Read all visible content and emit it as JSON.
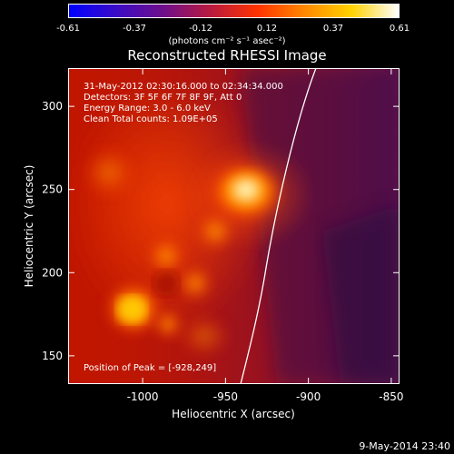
{
  "colorbar": {
    "ticks": [
      "-0.61",
      "-0.37",
      "-0.12",
      "0.12",
      "0.37",
      "0.61"
    ],
    "units": "(photons cm⁻² s⁻¹ asec⁻²)",
    "colors": [
      "#0000ff",
      "#3a0bc6",
      "#6e0f8b",
      "#b81a3f",
      "#ff3300",
      "#ff8800",
      "#ffd200",
      "#ffffff"
    ]
  },
  "plot": {
    "title": "Reconstructed RHESSI Image",
    "xlabel": "Heliocentric X (arcsec)",
    "ylabel": "Heliocentric Y (arcsec)",
    "xlim": [
      -1045,
      -845
    ],
    "ylim": [
      133,
      323
    ],
    "xticks": [
      "-1000",
      "-950",
      "-900",
      "-850"
    ],
    "xtick_values": [
      -1000,
      -950,
      -900,
      -850
    ],
    "yticks": [
      "150",
      "200",
      "250",
      "300"
    ],
    "ytick_values": [
      150,
      200,
      250,
      300
    ],
    "annotations": {
      "time": "31-May-2012 02:30:16.000 to 02:34:34.000",
      "detectors": "Detectors: 3F 5F 6F 7F 8F 9F, Att 0",
      "energy": "Energy Range: 3.0 - 6.0 keV",
      "clean": "Clean    Total counts: 1.09E+05",
      "peak": "Position of Peak = [-928,249]"
    }
  },
  "footer": {
    "date": "9-May-2014 23:40"
  }
}
